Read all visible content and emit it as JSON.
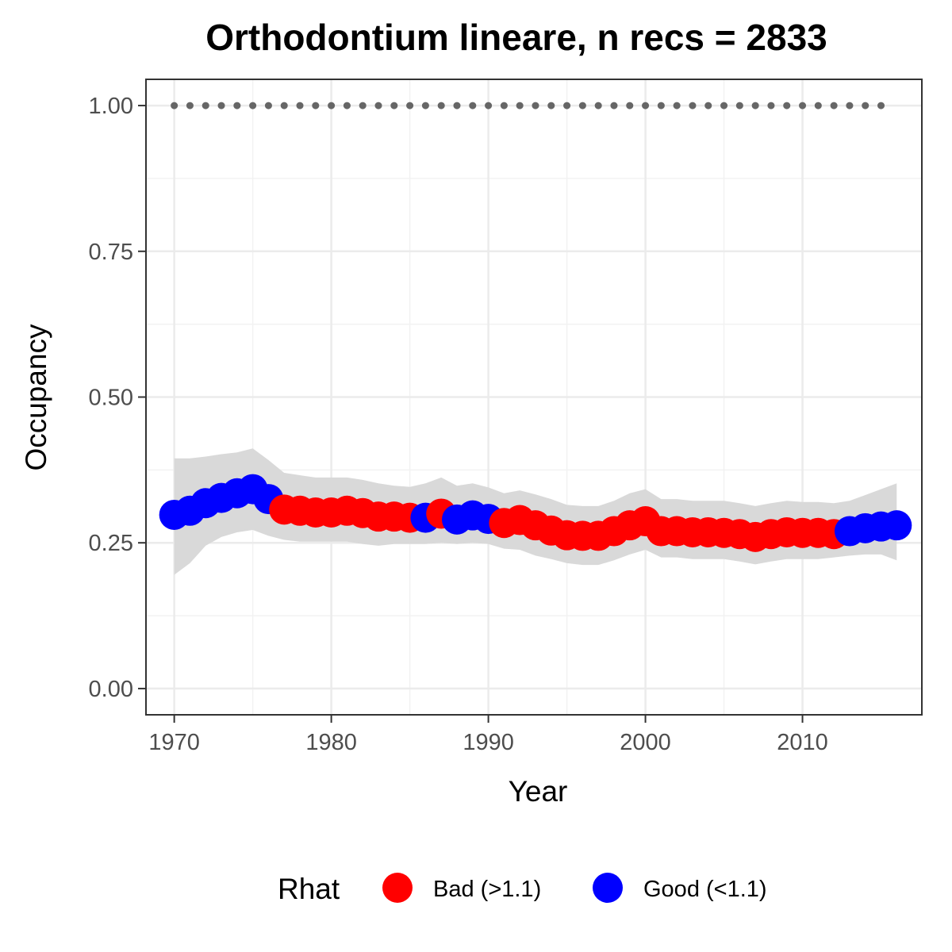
{
  "chart_data": {
    "type": "scatter",
    "title": "Orthodontium lineare, n recs = 2833",
    "xlabel": "Year",
    "ylabel": "Occupancy",
    "xlim": [
      1968.2,
      2017.6
    ],
    "ylim": [
      -0.045,
      1.045
    ],
    "x_ticks": [
      1970,
      1980,
      1990,
      2000,
      2010
    ],
    "x_tick_labels": [
      "1970",
      "1980",
      "1990",
      "2000",
      "2010"
    ],
    "y_ticks": [
      0,
      0.25,
      0.5,
      0.75,
      1.0
    ],
    "y_tick_labels": [
      "0.00",
      "0.25",
      "0.50",
      "0.75",
      "1.00"
    ],
    "grid": true,
    "legend": {
      "title": "Rhat",
      "position": "bottom",
      "entries": [
        {
          "label": "Bad (>1.1)",
          "color": "#ff0000"
        },
        {
          "label": "Good (<1.1)",
          "color": "#0000ff"
        }
      ]
    },
    "colors": {
      "bad": "#ff0000",
      "good": "#0000ff",
      "ribbon": "#d9d9d9",
      "reference": "#666666"
    },
    "reference_line": {
      "y": 1.0,
      "style": "dotted",
      "x_range": [
        1970,
        2015
      ]
    },
    "series": [
      {
        "name": "Occupancy",
        "x": [
          1970,
          1971,
          1972,
          1973,
          1974,
          1975,
          1976,
          1977,
          1978,
          1979,
          1980,
          1981,
          1982,
          1983,
          1984,
          1985,
          1986,
          1987,
          1988,
          1989,
          1990,
          1991,
          1992,
          1993,
          1994,
          1995,
          1996,
          1997,
          1998,
          1999,
          2000,
          2001,
          2002,
          2003,
          2004,
          2005,
          2006,
          2007,
          2008,
          2009,
          2010,
          2011,
          2012,
          2013,
          2014,
          2015,
          2016
        ],
        "y": [
          0.298,
          0.305,
          0.318,
          0.327,
          0.335,
          0.342,
          0.325,
          0.307,
          0.305,
          0.302,
          0.302,
          0.305,
          0.301,
          0.295,
          0.295,
          0.293,
          0.293,
          0.3,
          0.29,
          0.297,
          0.291,
          0.284,
          0.289,
          0.28,
          0.271,
          0.263,
          0.262,
          0.262,
          0.27,
          0.28,
          0.287,
          0.27,
          0.27,
          0.268,
          0.268,
          0.267,
          0.265,
          0.26,
          0.265,
          0.268,
          0.267,
          0.267,
          0.265,
          0.27,
          0.275,
          0.278,
          0.28
        ],
        "rhat": [
          "good",
          "good",
          "good",
          "good",
          "good",
          "good",
          "good",
          "bad",
          "bad",
          "bad",
          "bad",
          "bad",
          "bad",
          "bad",
          "bad",
          "bad",
          "good",
          "bad",
          "good",
          "good",
          "good",
          "bad",
          "bad",
          "bad",
          "bad",
          "bad",
          "bad",
          "bad",
          "bad",
          "bad",
          "bad",
          "bad",
          "bad",
          "bad",
          "bad",
          "bad",
          "bad",
          "bad",
          "bad",
          "bad",
          "bad",
          "bad",
          "bad",
          "good",
          "good",
          "good",
          "good"
        ],
        "lower": [
          0.195,
          0.215,
          0.245,
          0.26,
          0.268,
          0.272,
          0.262,
          0.255,
          0.252,
          0.252,
          0.252,
          0.252,
          0.248,
          0.245,
          0.248,
          0.248,
          0.248,
          0.25,
          0.248,
          0.25,
          0.248,
          0.24,
          0.238,
          0.228,
          0.222,
          0.215,
          0.212,
          0.212,
          0.22,
          0.23,
          0.238,
          0.225,
          0.225,
          0.222,
          0.222,
          0.222,
          0.218,
          0.213,
          0.218,
          0.222,
          0.222,
          0.222,
          0.225,
          0.228,
          0.23,
          0.23,
          0.22
        ],
        "upper": [
          0.395,
          0.395,
          0.398,
          0.402,
          0.405,
          0.412,
          0.392,
          0.37,
          0.366,
          0.362,
          0.362,
          0.362,
          0.358,
          0.352,
          0.348,
          0.346,
          0.352,
          0.362,
          0.348,
          0.352,
          0.345,
          0.335,
          0.34,
          0.333,
          0.325,
          0.315,
          0.313,
          0.313,
          0.322,
          0.335,
          0.342,
          0.325,
          0.325,
          0.322,
          0.322,
          0.322,
          0.318,
          0.313,
          0.318,
          0.322,
          0.32,
          0.32,
          0.318,
          0.322,
          0.332,
          0.342,
          0.352
        ]
      }
    ]
  }
}
